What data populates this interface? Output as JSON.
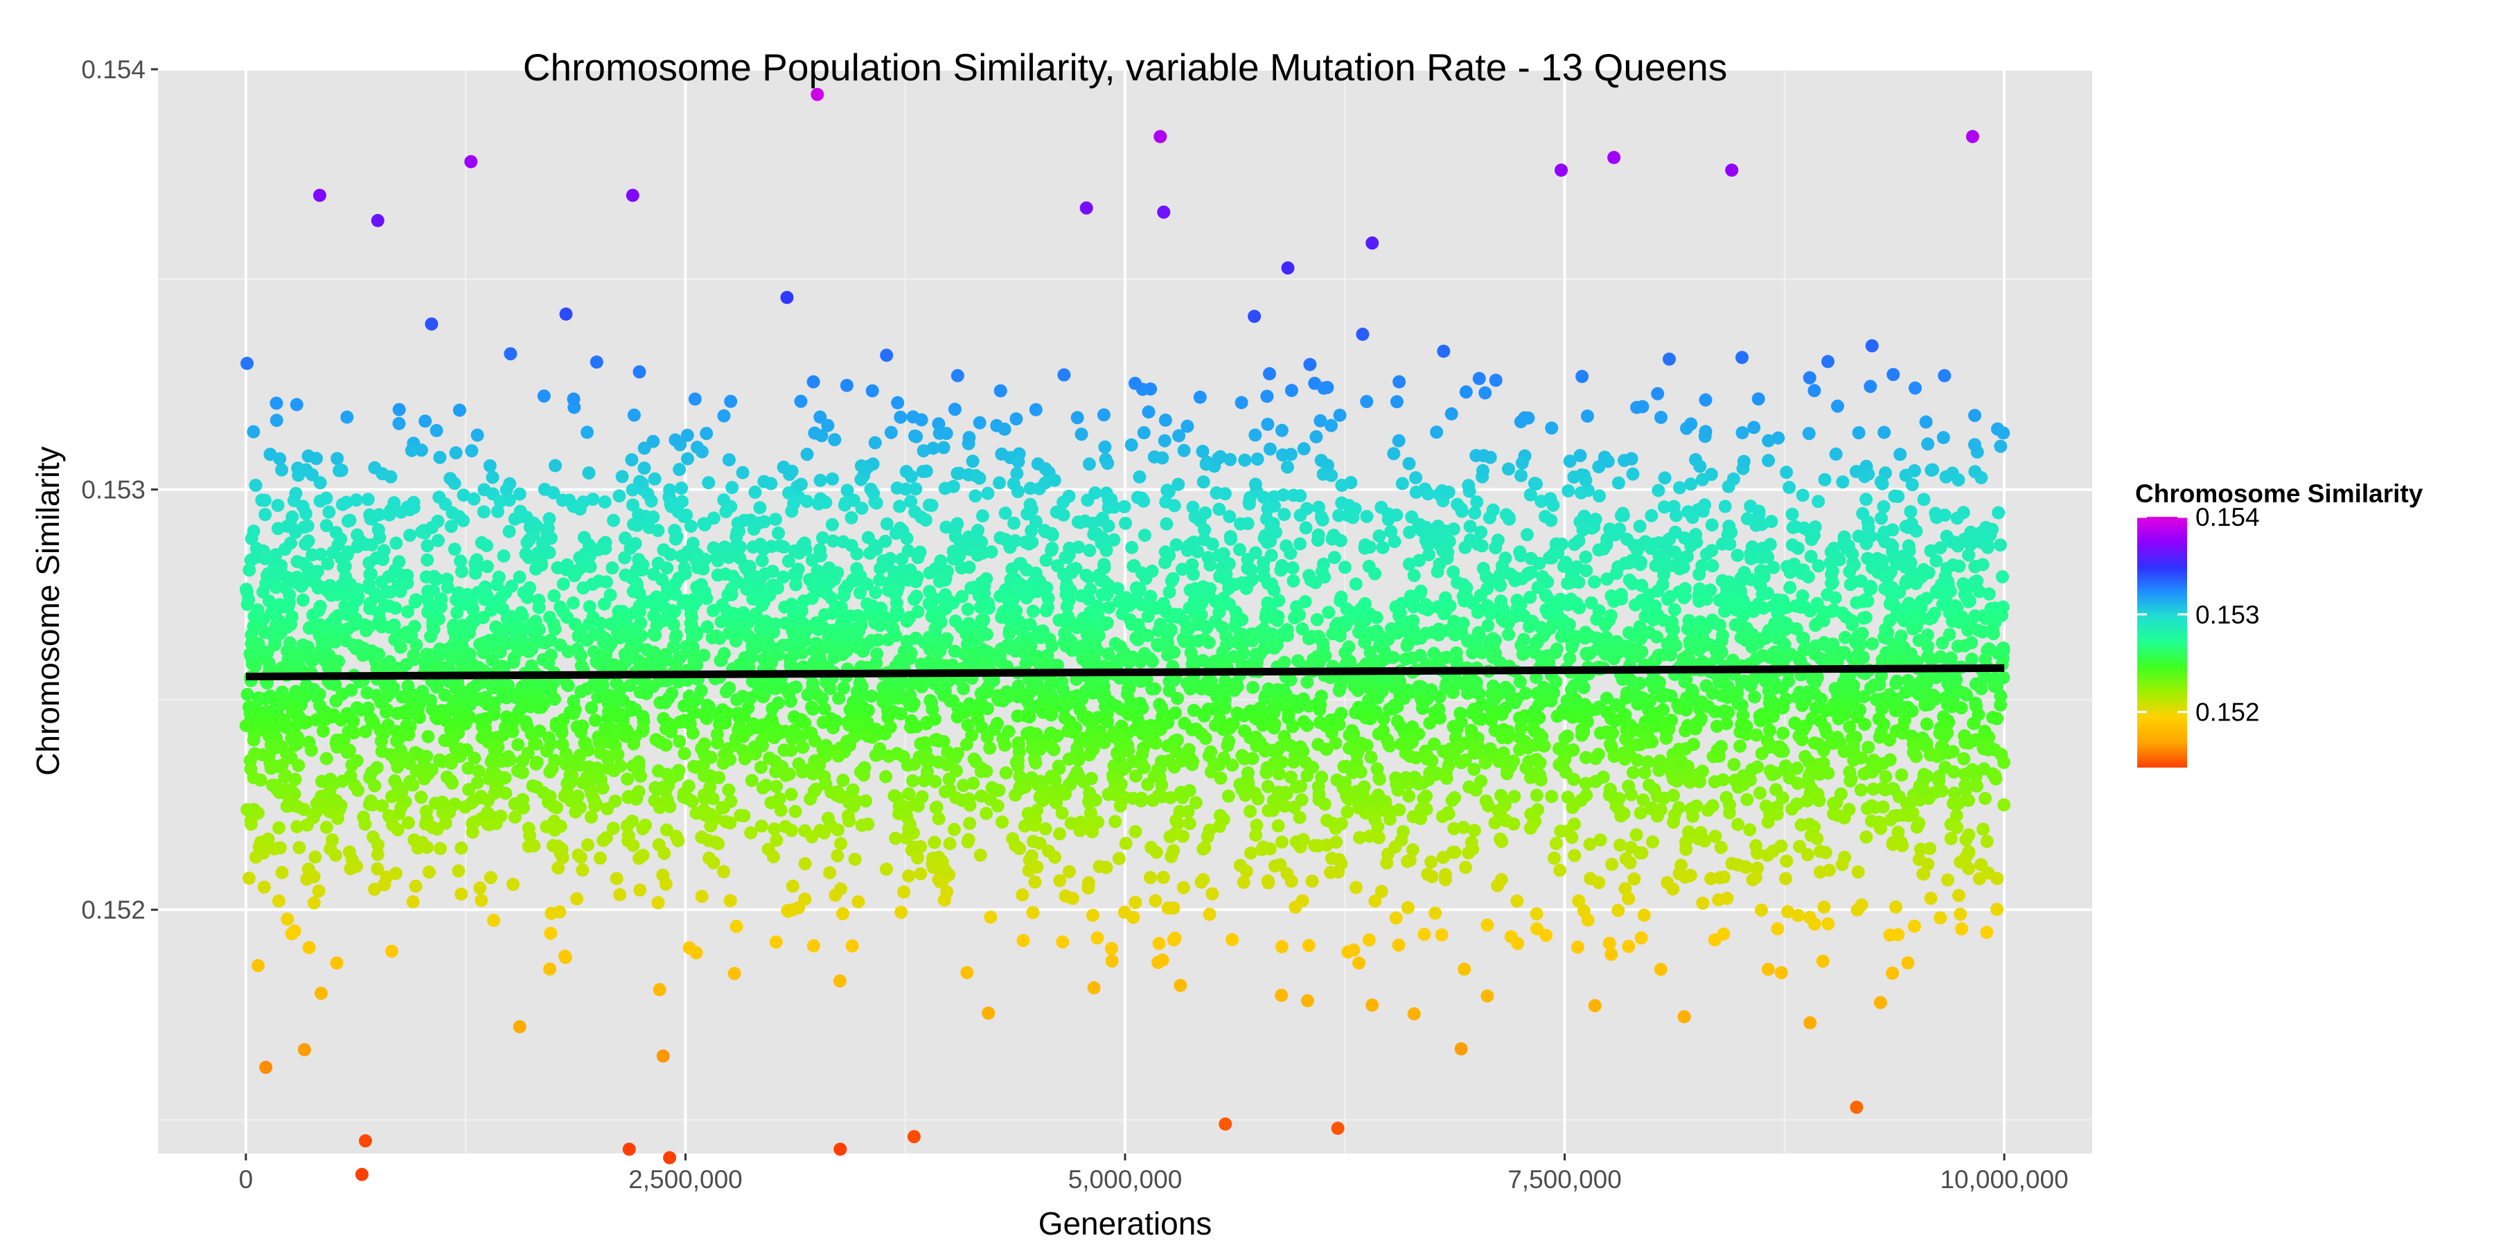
{
  "chart_data": {
    "type": "scatter",
    "title": "Chromosome Population Similarity, variable Mutation Rate - 13 Queens",
    "xlabel": "Generations",
    "ylabel": "Chromosome Similarity",
    "xlim": [
      -500000,
      10500000
    ],
    "ylim": [
      0.15142,
      0.154
    ],
    "x_ticks": [
      {
        "value": 0,
        "label": "0"
      },
      {
        "value": 2500000,
        "label": "2,500,000"
      },
      {
        "value": 5000000,
        "label": "5,000,000"
      },
      {
        "value": 7500000,
        "label": "7,500,000"
      },
      {
        "value": 10000000,
        "label": "10,000,000"
      }
    ],
    "y_ticks": [
      {
        "value": 0.152,
        "label": "0.152"
      },
      {
        "value": 0.153,
        "label": "0.153"
      },
      {
        "value": 0.154,
        "label": "0.154"
      }
    ],
    "grid": true,
    "point_count": 6000,
    "point_distribution": {
      "x_range": [
        0,
        10000000
      ],
      "y_mean": 0.152565,
      "y_sd": 0.00027
    },
    "trend_line": {
      "x": [
        0,
        10000000
      ],
      "y": [
        0.152555,
        0.152575
      ],
      "color": "#000000"
    },
    "notable_points": [
      {
        "x": 3250000,
        "y": 0.15394
      },
      {
        "x": 5200000,
        "y": 0.15384
      },
      {
        "x": 9820000,
        "y": 0.15384
      },
      {
        "x": 1280000,
        "y": 0.15378
      },
      {
        "x": 7780000,
        "y": 0.15379
      },
      {
        "x": 7480000,
        "y": 0.15376
      },
      {
        "x": 8450000,
        "y": 0.15376
      },
      {
        "x": 2200000,
        "y": 0.1537
      },
      {
        "x": 420000,
        "y": 0.1537
      },
      {
        "x": 4780000,
        "y": 0.15367
      },
      {
        "x": 5220000,
        "y": 0.15366
      },
      {
        "x": 750000,
        "y": 0.15364
      },
      {
        "x": 680000,
        "y": 0.15145
      },
      {
        "x": 2410000,
        "y": 0.15141
      },
      {
        "x": 660000,
        "y": 0.15137
      },
      {
        "x": 2180000,
        "y": 0.15143
      },
      {
        "x": 3800000,
        "y": 0.15146
      },
      {
        "x": 3380000,
        "y": 0.15143
      },
      {
        "x": 6210000,
        "y": 0.15148
      },
      {
        "x": 5570000,
        "y": 0.15149
      },
      {
        "x": 9160000,
        "y": 0.15153
      }
    ],
    "legend": {
      "title": "Chromosome Similarity",
      "placement": "right",
      "range": [
        0.15143,
        0.154
      ],
      "ticks": [
        {
          "value": 0.152,
          "label": "0.152"
        },
        {
          "value": 0.153,
          "label": "0.153"
        },
        {
          "value": 0.154,
          "label": "0.154"
        }
      ],
      "colors": [
        "#ff4000",
        "#ffa500",
        "#ffd000",
        "#a0f000",
        "#40ff20",
        "#20ff90",
        "#20e0d0",
        "#2090ff",
        "#3030ff",
        "#9000ff",
        "#e000e0"
      ]
    },
    "colors": {
      "panel_background": "#e5e5e5",
      "grid_major": "#ffffff",
      "grid_minor": "#f2f2f2"
    }
  }
}
